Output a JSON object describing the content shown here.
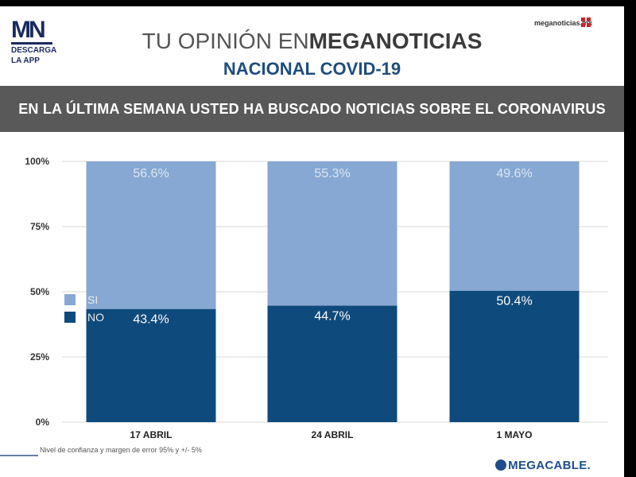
{
  "header": {
    "logo_text": "MN",
    "logo_sub_1": "DESCARGA",
    "logo_sub_2": "LA APP",
    "title_light": "TU OPINIÓN EN",
    "title_bold": "MEGANOTICIAS",
    "subtitle": "NACIONAL COVID-19",
    "site": "meganoticias.mx",
    "icon": "grid-icon"
  },
  "banner": {
    "question": "EN LA ÚLTIMA SEMANA USTED HA BUSCADO NOTICIAS SOBRE EL CORONAVIRUS"
  },
  "footnote": "Nivel de confianza y margen de error 95% y +/- 5%",
  "footer_brand": "MEGACABLE.",
  "colors": {
    "si": "#86a8d2",
    "no": "#0f4a7c",
    "banner": "#595959",
    "subtitle": "#1f4d7d"
  },
  "chart_data": {
    "type": "bar",
    "stacked": true,
    "categories": [
      "17 ABRIL",
      "24 ABRIL",
      "1 MAYO"
    ],
    "series": [
      {
        "name": "NO",
        "values": [
          43.4,
          44.7,
          50.4
        ],
        "labels": [
          "43.4%",
          "44.7%",
          "50.4%"
        ]
      },
      {
        "name": "SI",
        "values": [
          56.6,
          55.3,
          49.6
        ],
        "labels": [
          "56.6%",
          "55.3%",
          "49.6%"
        ]
      }
    ],
    "ylim": [
      0,
      100
    ],
    "yticks": [
      "0%",
      "25%",
      "50%",
      "75%",
      "100%"
    ],
    "grid": true,
    "legend": "left-middle",
    "legend_order": [
      "SI",
      "NO"
    ]
  }
}
